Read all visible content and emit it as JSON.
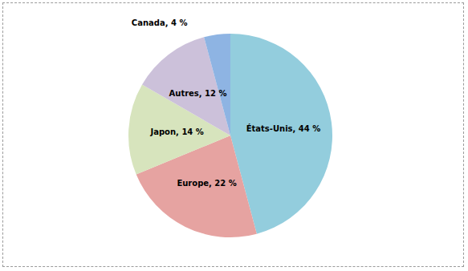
{
  "chart_data": {
    "type": "pie",
    "categories": [
      "États-Unis",
      "Europe",
      "Japon",
      "Autres",
      "Canada"
    ],
    "values": [
      44,
      22,
      14,
      12,
      4
    ],
    "value_labels": [
      "États-Unis, 44 %",
      "Europe, 22 %",
      "Japon, 14 %",
      "Autres, 12 %",
      "Canada, 4 %"
    ],
    "colors": [
      "#93cddd",
      "#e6a3a1",
      "#d7e4bd",
      "#ccc1da",
      "#8eb4e3"
    ],
    "data_labels": true,
    "legend": false
  }
}
